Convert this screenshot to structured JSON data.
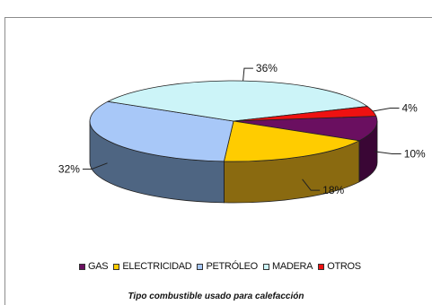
{
  "chart_data": {
    "type": "pie",
    "style": "3d-exploded-none",
    "slices": [
      {
        "label": "GAS",
        "value": 10,
        "value_label": "10%",
        "color": "#6a0f60",
        "side_color": "#3a0635"
      },
      {
        "label": "ELECTRICIDAD",
        "value": 18,
        "value_label": "18%",
        "color": "#ffcc00",
        "side_color": "#8a6a10"
      },
      {
        "label": "PETRÓLEO",
        "value": 32,
        "value_label": "32%",
        "color": "#a8c8f8",
        "side_color": "#4e6582"
      },
      {
        "label": "MADERA",
        "value": 36,
        "value_label": "36%",
        "color": "#ccf4f8",
        "side_color": "#7f9ea1"
      },
      {
        "label": "OTROS",
        "value": 4,
        "value_label": "4%",
        "color": "#ee1111",
        "side_color": "#8a0707"
      }
    ],
    "legend_position": "bottom",
    "caption": "Tipo combustible usado para calefacción"
  }
}
